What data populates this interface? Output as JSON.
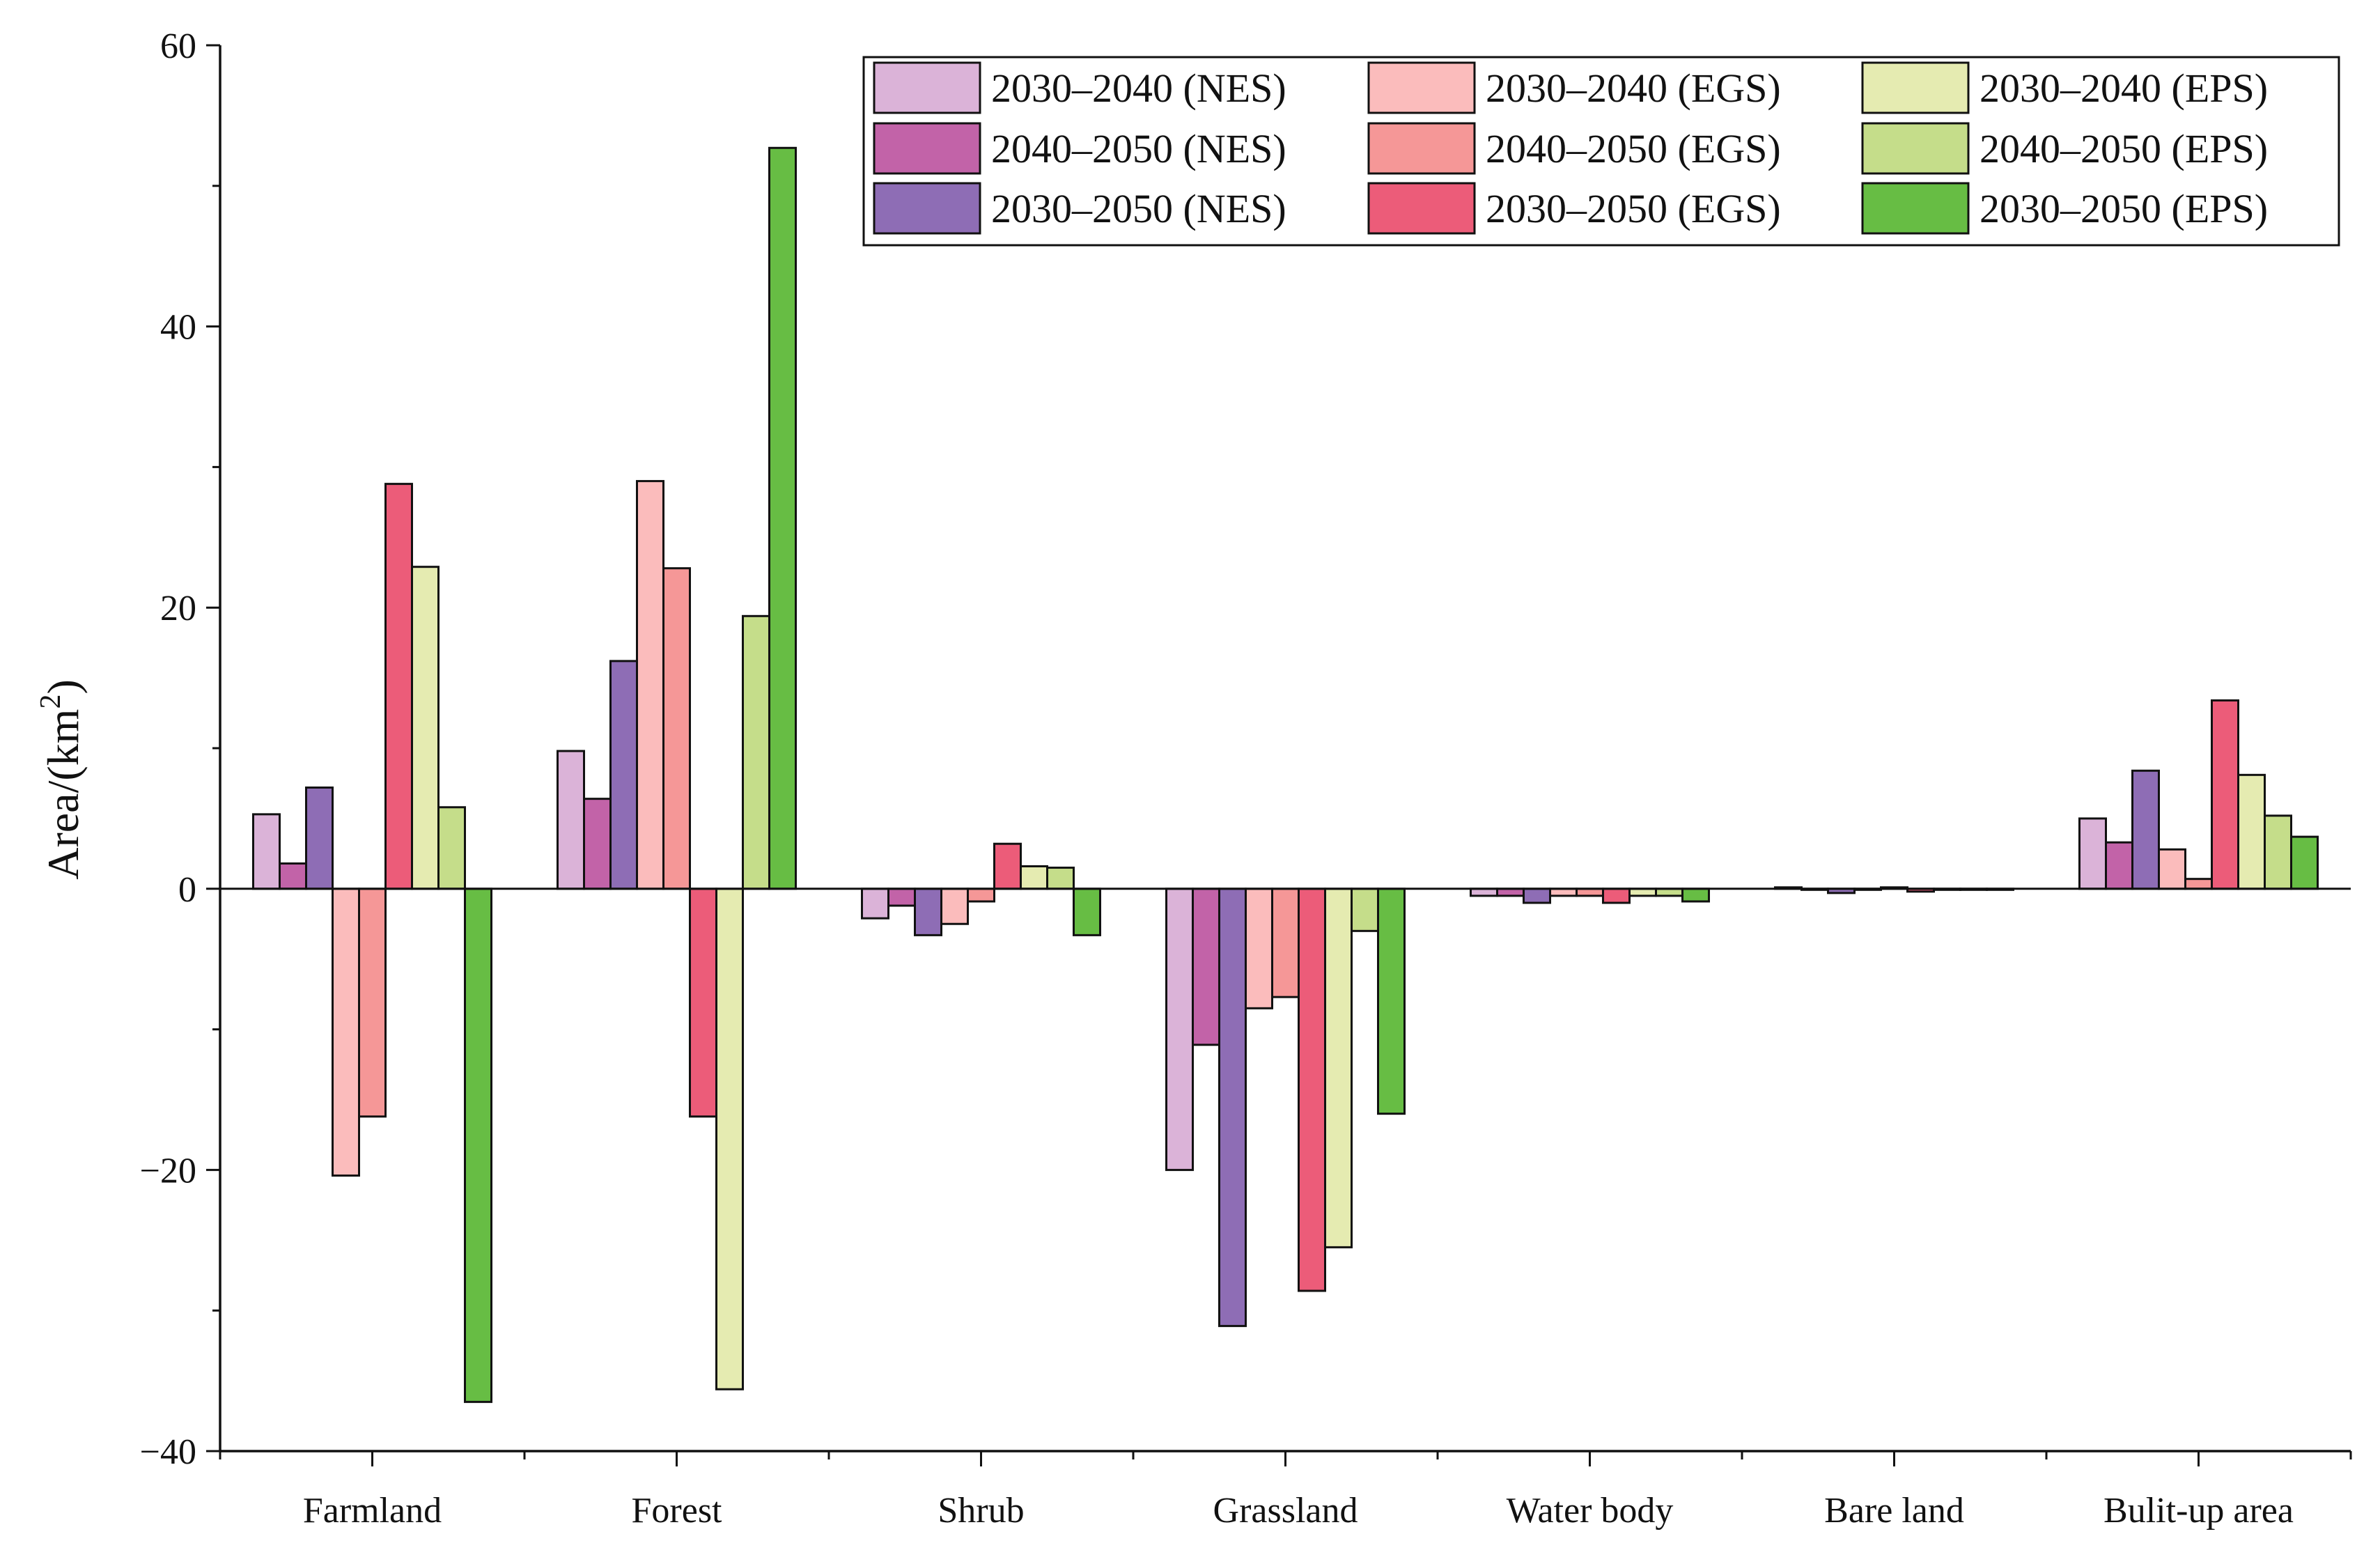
{
  "chart_data": {
    "type": "bar",
    "title": "",
    "xlabel": "",
    "ylabel": {
      "text": "Area/(km",
      "superscript": "2",
      "suffix": ")"
    },
    "ylim": [
      -40,
      60
    ],
    "yticks": [
      -40,
      -20,
      0,
      20,
      40,
      60
    ],
    "ytick_labels": [
      "−40",
      "−20",
      "0",
      "20",
      "40",
      "60"
    ],
    "grid": false,
    "legend_position": "top-right",
    "categories": [
      "Farmland",
      "Forest",
      "Shrub",
      "Grassland",
      "Water body",
      "Bare land",
      "Bulit-up area"
    ],
    "series": [
      {
        "name": "2030–2040 (NES)",
        "color": "#dbb3d8",
        "values": [
          5.3,
          9.8,
          -2.1,
          -20.0,
          -0.5,
          0.1,
          5.0
        ]
      },
      {
        "name": "2040–2050 (NES)",
        "color": "#c263a8",
        "values": [
          1.8,
          6.4,
          -1.2,
          -11.1,
          -0.5,
          0.0,
          3.3
        ]
      },
      {
        "name": "2030–2050 (NES)",
        "color": "#8e6db5",
        "values": [
          7.2,
          16.2,
          -3.3,
          -31.1,
          -1.0,
          -0.3,
          8.4
        ]
      },
      {
        "name": "2030–2040 (EGS)",
        "color": "#fbbcbc",
        "values": [
          -20.4,
          29.0,
          -2.5,
          -8.5,
          -0.5,
          0.0,
          2.8
        ]
      },
      {
        "name": "2040–2050 (EGS)",
        "color": "#f59797",
        "values": [
          -16.2,
          22.8,
          -0.9,
          -7.7,
          -0.5,
          0.1,
          0.7
        ]
      },
      {
        "name": "2030–2050 (EGS)",
        "color": "#ec5c79",
        "values": [
          28.8,
          -16.2,
          3.2,
          -28.6,
          -1.0,
          -0.2,
          13.4
        ]
      },
      {
        "name": "2030–2040 (EPS)",
        "color": "#e5ebb1",
        "values": [
          22.9,
          -35.6,
          1.6,
          -25.5,
          -0.5,
          0.0,
          8.1
        ]
      },
      {
        "name": "2040–2050 (EPS)",
        "color": "#c5dd8a",
        "values": [
          5.8,
          19.4,
          1.5,
          -3.0,
          -0.5,
          0.0,
          5.2
        ]
      },
      {
        "name": "2030–2050 (EPS)",
        "color": "#67bd44",
        "values": [
          -36.5,
          52.7,
          -3.3,
          -16.0,
          -0.9,
          0.0,
          3.7
        ]
      }
    ]
  }
}
